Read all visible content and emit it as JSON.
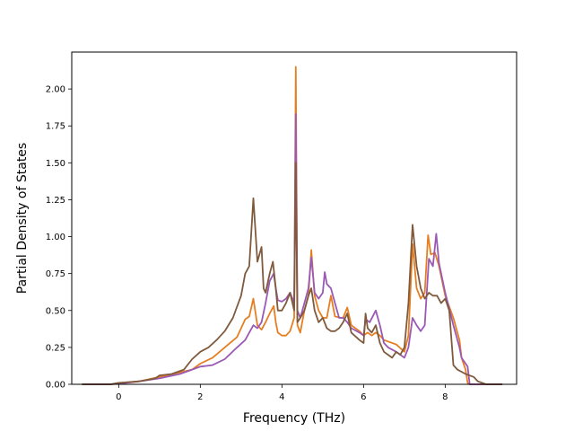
{
  "chart_data": {
    "type": "line",
    "title": "",
    "xlabel": "Frequency (THz)",
    "ylabel": "Partial Density of States",
    "xlim": [
      -1.15,
      9.75
    ],
    "ylim": [
      0,
      2.25
    ],
    "xticks": [
      0,
      2,
      4,
      6,
      8
    ],
    "xtick_labels": [
      "0",
      "2",
      "4",
      "6",
      "8"
    ],
    "yticks": [
      0,
      0.25,
      0.5,
      0.75,
      1.0,
      1.25,
      1.5,
      1.75,
      2.0
    ],
    "ytick_labels": [
      "0.00",
      "0.25",
      "0.50",
      "0.75",
      "1.00",
      "1.25",
      "1.50",
      "1.75",
      "2.00"
    ],
    "grid": false,
    "series": [
      {
        "color": "#e67e22",
        "points": [
          [
            -0.9,
            0
          ],
          [
            -0.2,
            0
          ],
          [
            0,
            0.005
          ],
          [
            0.5,
            0.02
          ],
          [
            1.0,
            0.05
          ],
          [
            1.5,
            0.08
          ],
          [
            1.8,
            0.1
          ],
          [
            2.0,
            0.14
          ],
          [
            2.3,
            0.18
          ],
          [
            2.6,
            0.25
          ],
          [
            2.9,
            0.32
          ],
          [
            3.1,
            0.44
          ],
          [
            3.2,
            0.46
          ],
          [
            3.3,
            0.58
          ],
          [
            3.4,
            0.4
          ],
          [
            3.5,
            0.37
          ],
          [
            3.6,
            0.42
          ],
          [
            3.7,
            0.48
          ],
          [
            3.8,
            0.53
          ],
          [
            3.85,
            0.42
          ],
          [
            3.9,
            0.35
          ],
          [
            4.0,
            0.33
          ],
          [
            4.1,
            0.33
          ],
          [
            4.2,
            0.36
          ],
          [
            4.3,
            0.45
          ],
          [
            4.34,
            2.15
          ],
          [
            4.38,
            0.4
          ],
          [
            4.45,
            0.35
          ],
          [
            4.55,
            0.5
          ],
          [
            4.65,
            0.6
          ],
          [
            4.72,
            0.91
          ],
          [
            4.8,
            0.6
          ],
          [
            4.9,
            0.5
          ],
          [
            5.0,
            0.45
          ],
          [
            5.1,
            0.45
          ],
          [
            5.2,
            0.6
          ],
          [
            5.3,
            0.46
          ],
          [
            5.45,
            0.45
          ],
          [
            5.5,
            0.45
          ],
          [
            5.6,
            0.52
          ],
          [
            5.7,
            0.4
          ],
          [
            5.9,
            0.36
          ],
          [
            6.0,
            0.33
          ],
          [
            6.1,
            0.35
          ],
          [
            6.2,
            0.33
          ],
          [
            6.3,
            0.35
          ],
          [
            6.4,
            0.33
          ],
          [
            6.5,
            0.3
          ],
          [
            6.6,
            0.29
          ],
          [
            6.8,
            0.27
          ],
          [
            7.0,
            0.22
          ],
          [
            7.1,
            0.33
          ],
          [
            7.2,
            0.95
          ],
          [
            7.3,
            0.65
          ],
          [
            7.4,
            0.58
          ],
          [
            7.5,
            0.62
          ],
          [
            7.58,
            1.01
          ],
          [
            7.65,
            0.88
          ],
          [
            7.75,
            0.89
          ],
          [
            7.85,
            0.8
          ],
          [
            8.0,
            0.6
          ],
          [
            8.2,
            0.45
          ],
          [
            8.35,
            0.3
          ],
          [
            8.4,
            0.18
          ],
          [
            8.5,
            0.1
          ],
          [
            8.55,
            0.01
          ],
          [
            8.6,
            0
          ],
          [
            9.4,
            0
          ]
        ]
      },
      {
        "color": "#9b59b6",
        "points": [
          [
            -0.9,
            0
          ],
          [
            -0.2,
            0
          ],
          [
            0,
            0.005
          ],
          [
            0.5,
            0.02
          ],
          [
            1.0,
            0.04
          ],
          [
            1.5,
            0.07
          ],
          [
            1.8,
            0.1
          ],
          [
            2.0,
            0.12
          ],
          [
            2.3,
            0.13
          ],
          [
            2.6,
            0.17
          ],
          [
            2.9,
            0.25
          ],
          [
            3.1,
            0.3
          ],
          [
            3.2,
            0.35
          ],
          [
            3.3,
            0.4
          ],
          [
            3.4,
            0.38
          ],
          [
            3.5,
            0.42
          ],
          [
            3.6,
            0.55
          ],
          [
            3.7,
            0.7
          ],
          [
            3.8,
            0.75
          ],
          [
            3.85,
            0.65
          ],
          [
            3.9,
            0.57
          ],
          [
            4.0,
            0.56
          ],
          [
            4.1,
            0.58
          ],
          [
            4.2,
            0.62
          ],
          [
            4.3,
            0.55
          ],
          [
            4.34,
            1.83
          ],
          [
            4.38,
            0.5
          ],
          [
            4.45,
            0.45
          ],
          [
            4.55,
            0.55
          ],
          [
            4.65,
            0.65
          ],
          [
            4.72,
            0.86
          ],
          [
            4.8,
            0.62
          ],
          [
            4.9,
            0.58
          ],
          [
            5.0,
            0.62
          ],
          [
            5.05,
            0.76
          ],
          [
            5.1,
            0.68
          ],
          [
            5.2,
            0.65
          ],
          [
            5.3,
            0.55
          ],
          [
            5.4,
            0.45
          ],
          [
            5.5,
            0.45
          ],
          [
            5.6,
            0.42
          ],
          [
            5.7,
            0.38
          ],
          [
            5.9,
            0.35
          ],
          [
            6.0,
            0.33
          ],
          [
            6.05,
            0.44
          ],
          [
            6.15,
            0.42
          ],
          [
            6.3,
            0.5
          ],
          [
            6.4,
            0.4
          ],
          [
            6.5,
            0.28
          ],
          [
            6.6,
            0.25
          ],
          [
            6.8,
            0.22
          ],
          [
            7.0,
            0.18
          ],
          [
            7.1,
            0.25
          ],
          [
            7.2,
            0.45
          ],
          [
            7.3,
            0.4
          ],
          [
            7.4,
            0.36
          ],
          [
            7.5,
            0.4
          ],
          [
            7.6,
            0.85
          ],
          [
            7.7,
            0.8
          ],
          [
            7.78,
            1.02
          ],
          [
            7.85,
            0.82
          ],
          [
            8.0,
            0.62
          ],
          [
            8.2,
            0.4
          ],
          [
            8.35,
            0.25
          ],
          [
            8.4,
            0.18
          ],
          [
            8.55,
            0.12
          ],
          [
            8.6,
            0
          ],
          [
            9.4,
            0
          ]
        ]
      },
      {
        "color": "#7f5a3c",
        "points": [
          [
            -0.9,
            0
          ],
          [
            -0.2,
            0
          ],
          [
            0,
            0.01
          ],
          [
            0.5,
            0.02
          ],
          [
            0.9,
            0.04
          ],
          [
            1.0,
            0.06
          ],
          [
            1.3,
            0.07
          ],
          [
            1.6,
            0.1
          ],
          [
            1.8,
            0.17
          ],
          [
            2.0,
            0.22
          ],
          [
            2.2,
            0.25
          ],
          [
            2.4,
            0.3
          ],
          [
            2.6,
            0.36
          ],
          [
            2.8,
            0.45
          ],
          [
            3.0,
            0.6
          ],
          [
            3.1,
            0.75
          ],
          [
            3.2,
            0.8
          ],
          [
            3.3,
            1.26
          ],
          [
            3.4,
            0.83
          ],
          [
            3.5,
            0.93
          ],
          [
            3.55,
            0.65
          ],
          [
            3.6,
            0.62
          ],
          [
            3.7,
            0.75
          ],
          [
            3.78,
            0.83
          ],
          [
            3.85,
            0.65
          ],
          [
            3.9,
            0.5
          ],
          [
            4.0,
            0.5
          ],
          [
            4.1,
            0.55
          ],
          [
            4.2,
            0.62
          ],
          [
            4.3,
            0.5
          ],
          [
            4.34,
            1.5
          ],
          [
            4.38,
            0.42
          ],
          [
            4.45,
            0.45
          ],
          [
            4.55,
            0.5
          ],
          [
            4.65,
            0.6
          ],
          [
            4.72,
            0.65
          ],
          [
            4.8,
            0.5
          ],
          [
            4.9,
            0.42
          ],
          [
            5.0,
            0.45
          ],
          [
            5.1,
            0.38
          ],
          [
            5.2,
            0.36
          ],
          [
            5.3,
            0.36
          ],
          [
            5.4,
            0.38
          ],
          [
            5.5,
            0.42
          ],
          [
            5.6,
            0.48
          ],
          [
            5.7,
            0.35
          ],
          [
            5.9,
            0.3
          ],
          [
            6.0,
            0.28
          ],
          [
            6.05,
            0.48
          ],
          [
            6.1,
            0.38
          ],
          [
            6.2,
            0.35
          ],
          [
            6.3,
            0.4
          ],
          [
            6.4,
            0.28
          ],
          [
            6.5,
            0.22
          ],
          [
            6.6,
            0.2
          ],
          [
            6.7,
            0.18
          ],
          [
            6.8,
            0.22
          ],
          [
            6.9,
            0.2
          ],
          [
            7.0,
            0.25
          ],
          [
            7.1,
            0.55
          ],
          [
            7.2,
            1.08
          ],
          [
            7.3,
            0.8
          ],
          [
            7.4,
            0.65
          ],
          [
            7.5,
            0.58
          ],
          [
            7.6,
            0.62
          ],
          [
            7.7,
            0.6
          ],
          [
            7.8,
            0.6
          ],
          [
            7.9,
            0.55
          ],
          [
            8.0,
            0.58
          ],
          [
            8.1,
            0.5
          ],
          [
            8.2,
            0.13
          ],
          [
            8.3,
            0.1
          ],
          [
            8.5,
            0.07
          ],
          [
            8.7,
            0.05
          ],
          [
            8.8,
            0.02
          ],
          [
            9.0,
            0
          ],
          [
            9.4,
            0
          ]
        ]
      }
    ]
  }
}
